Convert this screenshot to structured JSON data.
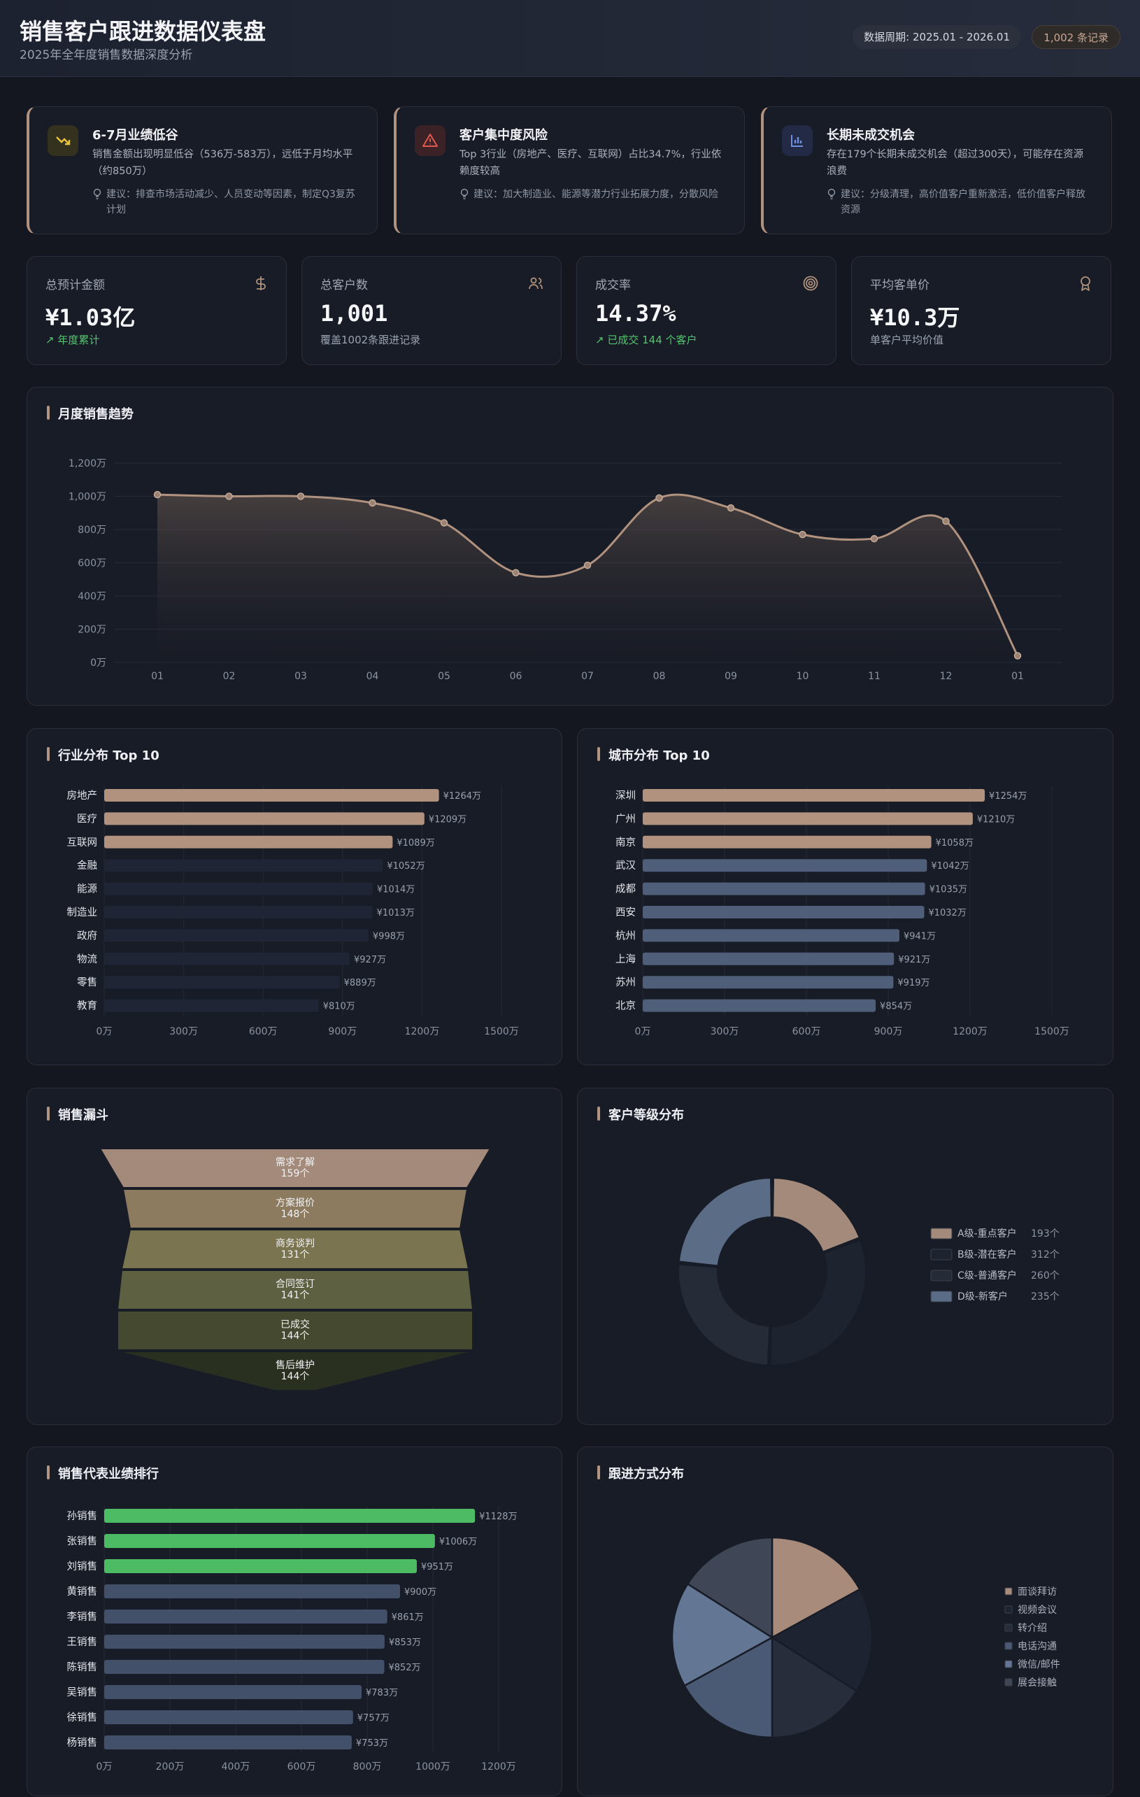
{
  "header": {
    "title": "销售客户跟进数据仪表盘",
    "subtitle": "2025年全年度销售数据深度分析",
    "period": "数据周期: 2025.01 - 2026.01",
    "record_count": "1,002 条记录"
  },
  "insights": [
    {
      "icon": "trending-down-icon",
      "title": "6-7月业绩低谷",
      "desc": "销售金额出现明显低谷（536万-583万），远低于月均水平（约850万）",
      "suggest": "建议：排查市场活动减少、人员变动等因素，制定Q3复苏计划"
    },
    {
      "icon": "warning-triangle-icon",
      "title": "客户集中度风险",
      "desc": "Top 3行业（房地产、医疗、互联网）占比34.7%，行业依赖度较高",
      "suggest": "建议：加大制造业、能源等潜力行业拓展力度，分散风险"
    },
    {
      "icon": "bar-chart-icon",
      "title": "长期未成交机会",
      "desc": "存在179个长期未成交机会（超过300天），可能存在资源浪费",
      "suggest": "建议：分级清理，高价值客户重新激活，低价值客户释放资源"
    }
  ],
  "kpis": [
    {
      "label": "总预计金额",
      "value": "¥1.03亿",
      "note": "年度累计",
      "icon": "dollar-icon"
    },
    {
      "label": "总客户数",
      "value": "1,001",
      "note": "覆盖1002条跟进记录",
      "icon": "users-icon"
    },
    {
      "label": "成交率",
      "value": "14.37%",
      "note": "已成交 144 个客户",
      "icon": "target-icon"
    },
    {
      "label": "平均客单价",
      "value": "¥10.3万",
      "note": "单客户平均价值",
      "icon": "award-icon"
    }
  ],
  "monthly": {
    "title": "月度销售趋势",
    "y_ticks": [
      "0万",
      "200万",
      "400万",
      "600万",
      "800万",
      "1,000万",
      "1,200万"
    ]
  },
  "industry": {
    "title": "行业分布 Top 10"
  },
  "city": {
    "title": "城市分布 Top 10"
  },
  "funnel": {
    "title": "销售漏斗"
  },
  "grade": {
    "title": "客户等级分布"
  },
  "reps": {
    "title": "销售代表业绩排行"
  },
  "followup": {
    "title": "跟进方式分布"
  },
  "colors": {
    "accent": "#b0927e",
    "green": "#4cbb63",
    "slate": "#4f5f7a",
    "dark_bar": "#1f2535"
  },
  "chart_data": [
    {
      "type": "area",
      "title": "月度销售趋势",
      "categories": [
        "01",
        "02",
        "03",
        "04",
        "05",
        "06",
        "07",
        "08",
        "09",
        "10",
        "11",
        "12",
        "01"
      ],
      "values": [
        1010,
        1000,
        1000,
        960,
        840,
        540,
        585,
        990,
        930,
        770,
        745,
        850,
        40
      ],
      "ylim": [
        0,
        1200
      ],
      "y_ticks": [
        "0万",
        "200万",
        "400万",
        "600万",
        "800万",
        "1,000万",
        "1,200万"
      ],
      "grid": true
    },
    {
      "type": "bar",
      "title": "行业分布 Top 10",
      "categories": [
        "房地产",
        "医疗",
        "互联网",
        "金融",
        "能源",
        "制造业",
        "政府",
        "物流",
        "零售",
        "教育"
      ],
      "values": [
        1264,
        1209,
        1089,
        1052,
        1014,
        1013,
        998,
        927,
        889,
        810
      ],
      "labels": [
        "¥1264万",
        "¥1209万",
        "¥1089万",
        "¥1052万",
        "¥1014万",
        "¥1013万",
        "¥998万",
        "¥927万",
        "¥889万",
        "¥810万"
      ],
      "x_ticks": [
        "0万",
        "300万",
        "600万",
        "900万",
        "1200万",
        "1500万"
      ],
      "xlim": [
        0,
        1500
      ],
      "highlight": 3
    },
    {
      "type": "bar",
      "title": "城市分布 Top 10",
      "categories": [
        "深圳",
        "广州",
        "南京",
        "武汉",
        "成都",
        "西安",
        "杭州",
        "上海",
        "苏州",
        "北京"
      ],
      "values": [
        1254,
        1210,
        1058,
        1042,
        1035,
        1032,
        941,
        921,
        919,
        854
      ],
      "labels": [
        "¥1254万",
        "¥1210万",
        "¥1058万",
        "¥1042万",
        "¥1035万",
        "¥1032万",
        "¥941万",
        "¥921万",
        "¥919万",
        "¥854万"
      ],
      "x_ticks": [
        "0万",
        "300万",
        "600万",
        "900万",
        "1200万",
        "1500万"
      ],
      "xlim": [
        0,
        1500
      ],
      "highlight": 3
    },
    {
      "type": "bar",
      "title": "销售漏斗",
      "stages": [
        {
          "name": "需求了解",
          "count": "159个",
          "value": 159
        },
        {
          "name": "方案报价",
          "count": "148个",
          "value": 148
        },
        {
          "name": "商务谈判",
          "count": "131个",
          "value": 131
        },
        {
          "name": "合同签订",
          "count": "141个",
          "value": 141
        },
        {
          "name": "已成交",
          "count": "144个",
          "value": 144
        },
        {
          "name": "售后维护",
          "count": "144个",
          "value": 144
        }
      ]
    },
    {
      "type": "pie",
      "title": "客户等级分布",
      "series": [
        {
          "name": "A级-重点客户",
          "count": "193个",
          "value": 193
        },
        {
          "name": "B级-潜在客户",
          "count": "312个",
          "value": 312
        },
        {
          "name": "C级-普通客户",
          "count": "260个",
          "value": 260
        },
        {
          "name": "D级-新客户",
          "count": "235个",
          "value": 235
        }
      ]
    },
    {
      "type": "bar",
      "title": "销售代表业绩排行",
      "categories": [
        "孙销售",
        "张销售",
        "刘销售",
        "黄销售",
        "李销售",
        "王销售",
        "陈销售",
        "吴销售",
        "徐销售",
        "杨销售"
      ],
      "values": [
        1128,
        1006,
        951,
        900,
        861,
        853,
        852,
        783,
        757,
        753
      ],
      "labels": [
        "¥1128万",
        "¥1006万",
        "¥951万",
        "¥900万",
        "¥861万",
        "¥853万",
        "¥852万",
        "¥783万",
        "¥757万",
        "¥753万"
      ],
      "x_ticks": [
        "0万",
        "200万",
        "400万",
        "600万",
        "800万",
        "1000万",
        "1200万"
      ],
      "xlim": [
        0,
        1200
      ],
      "highlight": 3
    },
    {
      "type": "pie",
      "title": "跟进方式分布",
      "series": [
        {
          "name": "面谈拜访",
          "value": 17,
          "color": "#a88b7a"
        },
        {
          "name": "视频会议",
          "value": 17,
          "color": "#1e2331"
        },
        {
          "name": "转介绍",
          "value": 16,
          "color": "#282d3b"
        },
        {
          "name": "电话沟通",
          "value": 17,
          "color": "#4a5a74"
        },
        {
          "name": "微信/邮件",
          "value": 17,
          "color": "#637794"
        },
        {
          "name": "展会接触",
          "value": 16,
          "color": "#3f4655"
        }
      ]
    }
  ]
}
